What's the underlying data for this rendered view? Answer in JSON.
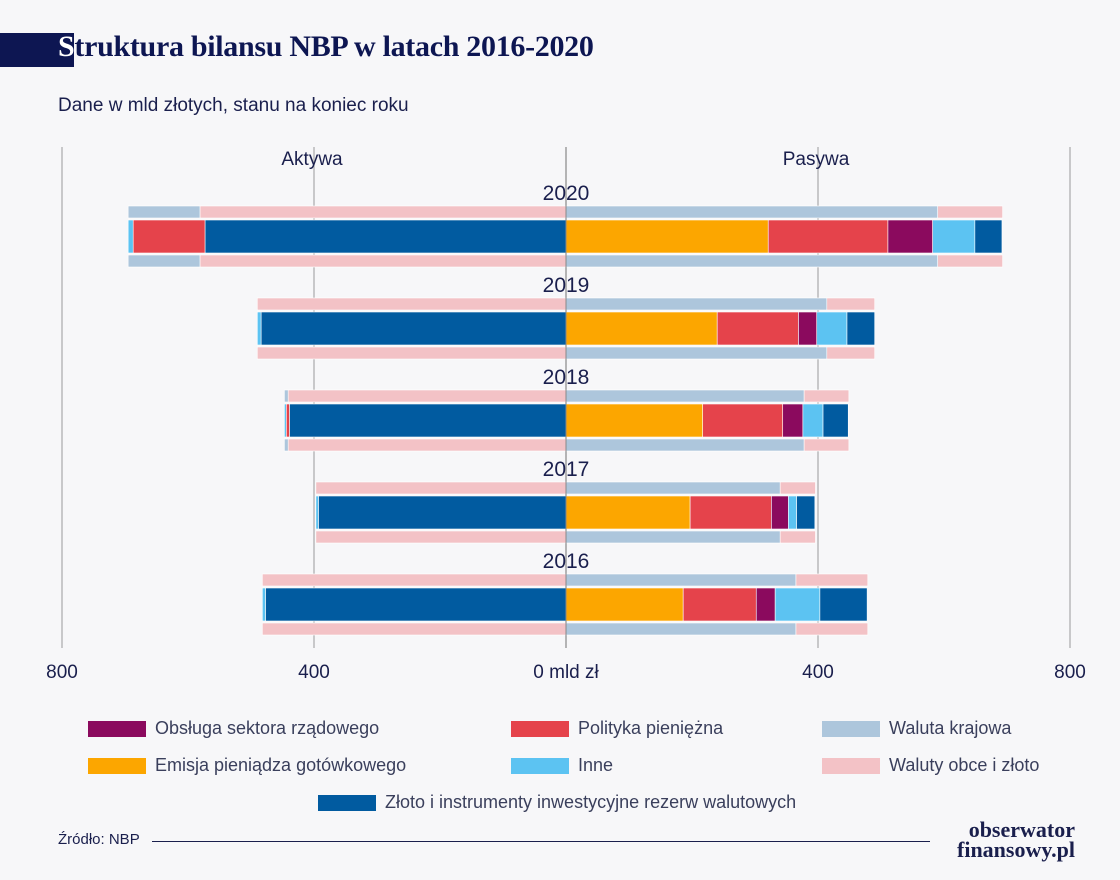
{
  "title_first": "S",
  "title_rest": "truktura bilansu NBP w latach 2016-2020",
  "subtitle": "Dane w mld złotych, stanu na koniec roku",
  "source": "Źródło: NBP",
  "logo": {
    "line1": "obserwator",
    "line2": "finansowy.pl"
  },
  "chart_data": {
    "type": "bar",
    "orientation": "horizontal-diverging",
    "side_labels": {
      "left": "Aktywa",
      "right": "Pasywa"
    },
    "xlim": [
      -800,
      800
    ],
    "x_ticks": [
      {
        "value": -800,
        "label": "800"
      },
      {
        "value": -400,
        "label": "400"
      },
      {
        "value": 0,
        "label": "0 mld zł"
      },
      {
        "value": 400,
        "label": "400"
      },
      {
        "value": 800,
        "label": "800"
      }
    ],
    "grid": true,
    "legend_position": "bottom",
    "categories": [
      "2020",
      "2019",
      "2018",
      "2017",
      "2016"
    ],
    "colors": {
      "obsluga": "#8b0a5e",
      "polityka": "#e5434b",
      "waluta_krajowa": "#adc6dc",
      "emisja": "#fca600",
      "inne": "#5cc3f2",
      "waluty_obce": "#f3c2c6",
      "zloto": "#015ba0"
    },
    "legend": [
      {
        "key": "obsluga",
        "label": "Obsługa sektora rządowego"
      },
      {
        "key": "polityka",
        "label": "Polityka pieniężna"
      },
      {
        "key": "waluta_krajowa",
        "label": "Waluta krajowa"
      },
      {
        "key": "emisja",
        "label": "Emisja pieniądza gotówkowego"
      },
      {
        "key": "inne",
        "label": "Inne"
      },
      {
        "key": "waluty_obce",
        "label": "Waluty obce i złoto"
      },
      {
        "key": "zloto",
        "label": "Złoto i instrumenty inwestycyjne rezerw walutowych"
      }
    ],
    "aktywa_currency": {
      "waluty_obce": [
        581,
        490,
        441,
        397,
        482
      ],
      "waluta_krajowa": [
        114,
        0,
        6,
        0,
        0
      ]
    },
    "aktywa_function": {
      "zloto": [
        573,
        484,
        439,
        393,
        477
      ],
      "polityka": [
        114,
        0,
        5,
        0,
        0
      ],
      "inne": [
        8,
        6,
        3,
        4,
        5
      ]
    },
    "pasywa_currency": {
      "waluta_krajowa": [
        590,
        414,
        378,
        340,
        365
      ],
      "waluty_obce": [
        103,
        76,
        71,
        56,
        114
      ]
    },
    "pasywa_function": {
      "emisja": [
        321,
        240,
        217,
        197,
        186
      ],
      "polityka": [
        190,
        129,
        127,
        129,
        116
      ],
      "obsluga": [
        71,
        29,
        32,
        27,
        30
      ],
      "inne": [
        67,
        48,
        32,
        13,
        71
      ],
      "zloto": [
        43,
        44,
        40,
        29,
        75
      ]
    }
  }
}
